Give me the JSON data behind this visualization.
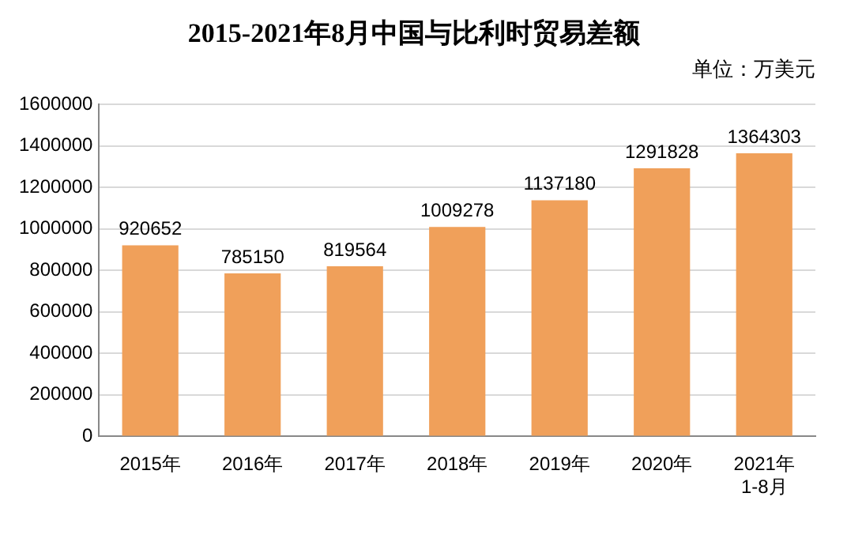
{
  "chart_data": {
    "type": "bar",
    "title": "2015-2021年8月中国与比利时贸易差额",
    "subtitle": "单位：万美元",
    "categories": [
      "2015年",
      "2016年",
      "2017年",
      "2018年",
      "2019年",
      "2020年",
      "2021年\n1-8月"
    ],
    "values": [
      920652,
      785150,
      819564,
      1009278,
      1137180,
      1291828,
      1364303
    ],
    "color": "#f0a05a",
    "ylim": [
      0,
      1600000
    ],
    "yticks": [
      0,
      200000,
      400000,
      600000,
      800000,
      1000000,
      1200000,
      1400000,
      1600000
    ],
    "grid": "y",
    "data_labels": true
  }
}
